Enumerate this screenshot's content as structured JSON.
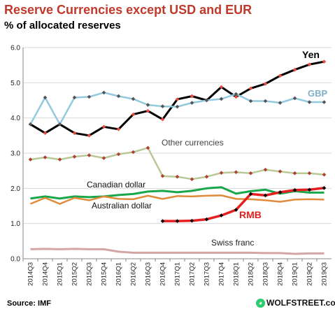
{
  "header": {
    "title": "Reserve Currencies except USD and EUR",
    "subtitle": "% of allocated reserves"
  },
  "footer": {
    "source": "Source: IMF",
    "watermark": "WOLFSTREET.com"
  },
  "chart_data": {
    "type": "line",
    "title": "Reserve Currencies except USD and EUR",
    "subtitle": "% of allocated reserves",
    "ylim": [
      0,
      6
    ],
    "yticks": [
      "0.0",
      "1.0",
      "2.0",
      "3.0",
      "4.0",
      "5.0",
      "6.0"
    ],
    "grid": "horizontal",
    "x": [
      "2014Q3",
      "2014Q4",
      "2015Q1",
      "2015Q2",
      "2015Q3",
      "2015Q4",
      "2016Q1",
      "2016Q2",
      "2016Q3",
      "2016Q4",
      "2017Q1",
      "2017Q2",
      "2017Q3",
      "2017Q4",
      "2018Q1",
      "2018Q2",
      "2018Q3",
      "2018Q4",
      "2019Q1",
      "2019Q2",
      "2019Q3"
    ],
    "series": [
      {
        "name": "Yen",
        "color": "#000000",
        "marker": "#e74c3c",
        "values": [
          3.82,
          3.57,
          3.82,
          3.57,
          3.5,
          3.75,
          3.68,
          4.1,
          4.2,
          3.96,
          4.53,
          4.62,
          4.5,
          4.88,
          4.6,
          4.84,
          4.97,
          5.2,
          5.37,
          5.52,
          5.6
        ]
      },
      {
        "name": "GBP",
        "color": "#93c9dc",
        "marker": "#555555",
        "values": [
          3.82,
          4.58,
          3.82,
          4.58,
          4.6,
          4.72,
          4.62,
          4.54,
          4.37,
          4.33,
          4.32,
          4.43,
          4.5,
          4.54,
          4.68,
          4.48,
          4.48,
          4.43,
          4.56,
          4.45,
          4.45
        ]
      },
      {
        "name": "Other currencies",
        "color": "#b8c997",
        "marker": "#b04030",
        "values": [
          2.82,
          2.88,
          2.82,
          2.9,
          2.94,
          2.86,
          2.97,
          3.03,
          3.15,
          2.35,
          2.33,
          2.26,
          2.33,
          2.44,
          2.46,
          2.43,
          2.53,
          2.48,
          2.43,
          2.43,
          2.39
        ]
      },
      {
        "name": "Canadian dollar",
        "color": "#1aa64a",
        "values": [
          1.71,
          1.77,
          1.71,
          1.77,
          1.75,
          1.77,
          1.81,
          1.84,
          1.91,
          1.93,
          1.89,
          1.93,
          2.0,
          2.03,
          1.85,
          1.92,
          1.96,
          1.85,
          1.92,
          1.88,
          1.88
        ]
      },
      {
        "name": "Australian dollar",
        "color": "#e08a3c",
        "values": [
          1.56,
          1.73,
          1.56,
          1.73,
          1.66,
          1.77,
          1.7,
          1.69,
          1.79,
          1.7,
          1.78,
          1.77,
          1.79,
          1.8,
          1.7,
          1.69,
          1.66,
          1.62,
          1.68,
          1.69,
          1.68
        ]
      },
      {
        "name": "RMB",
        "color": "#e62020",
        "marker": "#000000",
        "values": [
          null,
          null,
          null,
          null,
          null,
          null,
          null,
          null,
          null,
          1.07,
          1.07,
          1.08,
          1.12,
          1.23,
          1.39,
          1.84,
          1.8,
          1.89,
          1.95,
          1.96,
          2.01
        ]
      },
      {
        "name": "Swiss franc",
        "color": "#d4a5a5",
        "values": [
          0.27,
          0.28,
          0.27,
          0.28,
          0.27,
          0.27,
          0.2,
          0.17,
          0.17,
          0.17,
          0.17,
          0.17,
          0.17,
          0.17,
          0.17,
          0.17,
          0.16,
          0.16,
          0.14,
          0.15,
          0.15
        ]
      }
    ],
    "labels": {
      "yen": "Yen",
      "gbp": "GBP",
      "other": "Other currencies",
      "cad": "Canadian dollar",
      "aud": "Australian dollar",
      "rmb": "RMB",
      "chf": "Swiss franc"
    }
  }
}
